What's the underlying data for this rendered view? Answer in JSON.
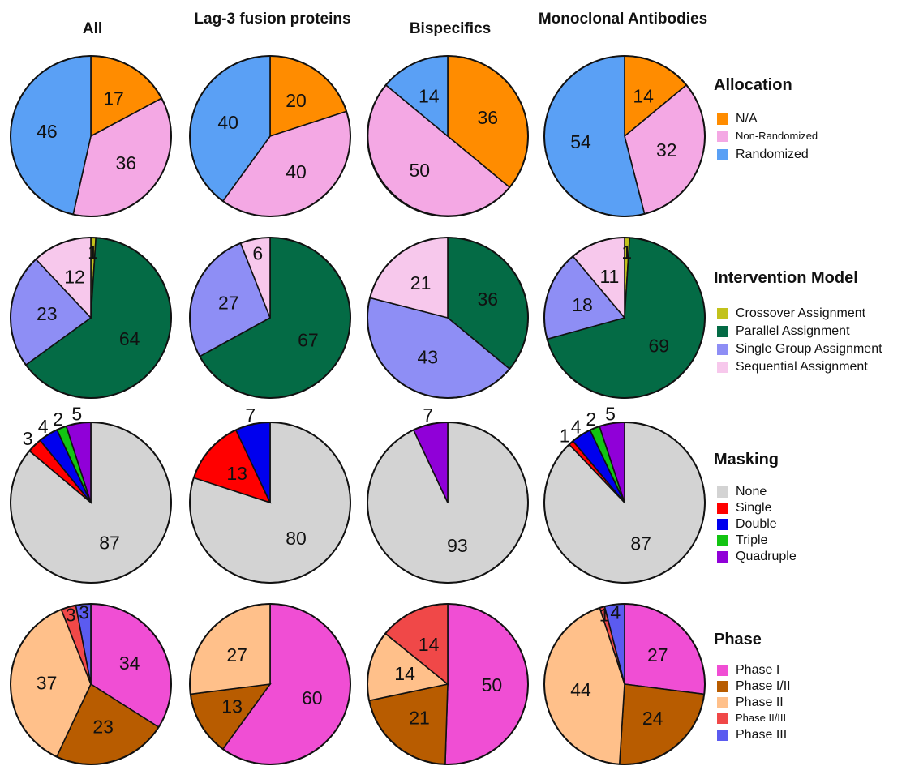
{
  "column_titles": [
    "All",
    "Lag-3 fusion proteins",
    "Bispecifics",
    "Monoclonal Antibodies"
  ],
  "chart_data": [
    {
      "type": "pie",
      "title": "Allocation",
      "categories": [
        "N/A",
        "Non-Randomized",
        "Randomized"
      ],
      "colors": [
        "#ff8c00",
        "#f4a8e4",
        "#5aa0f5"
      ],
      "series": [
        {
          "name": "All",
          "values": [
            17,
            36,
            46
          ]
        },
        {
          "name": "Lag-3 fusion proteins",
          "values": [
            20,
            40,
            40
          ]
        },
        {
          "name": "Bispecifics",
          "values": [
            36,
            50,
            14
          ]
        },
        {
          "name": "Monoclonal Antibodies",
          "values": [
            14,
            32,
            54
          ]
        }
      ]
    },
    {
      "type": "pie",
      "title": "Intervention Model",
      "categories": [
        "Crossover Assignment",
        "Parallel Assignment",
        "Single Group Assignment",
        "Sequential Assignment"
      ],
      "colors": [
        "#c2c21b",
        "#046b45",
        "#8e8ef5",
        "#f7c8ec"
      ],
      "series": [
        {
          "name": "All",
          "values": [
            1,
            64,
            23,
            12
          ]
        },
        {
          "name": "Lag-3 fusion proteins",
          "values": [
            0,
            67,
            27,
            6
          ]
        },
        {
          "name": "Bispecifics",
          "values": [
            0,
            36,
            43,
            21
          ]
        },
        {
          "name": "Monoclonal Antibodies",
          "values": [
            1,
            69,
            18,
            11
          ]
        }
      ]
    },
    {
      "type": "pie",
      "title": "Masking",
      "categories": [
        "None",
        "Single",
        "Double",
        "Triple",
        "Quadruple"
      ],
      "colors": [
        "#d3d3d3",
        "#ff0000",
        "#0000ee",
        "#12c412",
        "#9000d8"
      ],
      "series": [
        {
          "name": "All",
          "values": [
            87,
            3,
            4,
            2,
            5
          ]
        },
        {
          "name": "Lag-3 fusion proteins",
          "values": [
            80,
            13,
            7,
            0,
            0
          ]
        },
        {
          "name": "Bispecifics",
          "values": [
            93,
            0,
            0,
            0,
            7
          ]
        },
        {
          "name": "Monoclonal Antibodies",
          "values": [
            87,
            1,
            4,
            2,
            5
          ]
        }
      ]
    },
    {
      "type": "pie",
      "title": "Phase",
      "categories": [
        "Phase I",
        "Phase I/II",
        "Phase II",
        "Phase II/III",
        "Phase III"
      ],
      "colors": [
        "#f04ed4",
        "#b85c00",
        "#ffc08a",
        "#f04848",
        "#5b5bf0"
      ],
      "series": [
        {
          "name": "All",
          "values": [
            34,
            23,
            37,
            3,
            3
          ]
        },
        {
          "name": "Lag-3 fusion proteins",
          "values": [
            60,
            13,
            27,
            0,
            0
          ]
        },
        {
          "name": "Bispecifics",
          "values": [
            50,
            21,
            14,
            14,
            0
          ]
        },
        {
          "name": "Monoclonal Antibodies",
          "values": [
            27,
            24,
            44,
            1,
            4
          ]
        }
      ]
    }
  ]
}
